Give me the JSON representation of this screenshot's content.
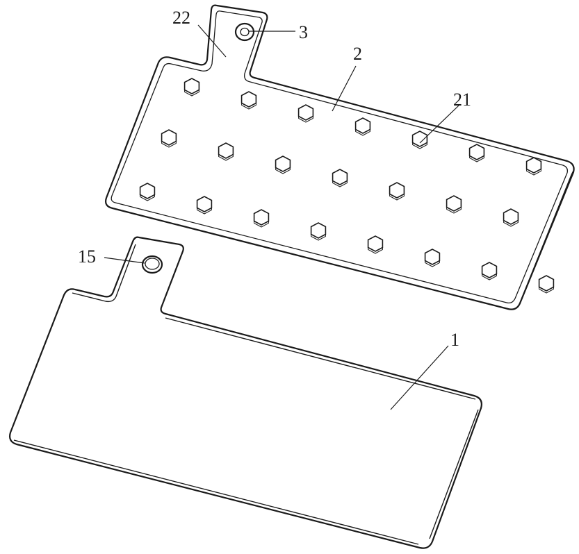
{
  "labels": {
    "part_22": "22",
    "part_3": "3",
    "part_2": "2",
    "part_21": "21",
    "part_15": "15",
    "part_1": "1"
  },
  "colors": {
    "line": "#1a1a1a",
    "background": "#ffffff"
  },
  "plate_2": {
    "hex_protrusion_count": 24,
    "hex_rows": 3
  }
}
